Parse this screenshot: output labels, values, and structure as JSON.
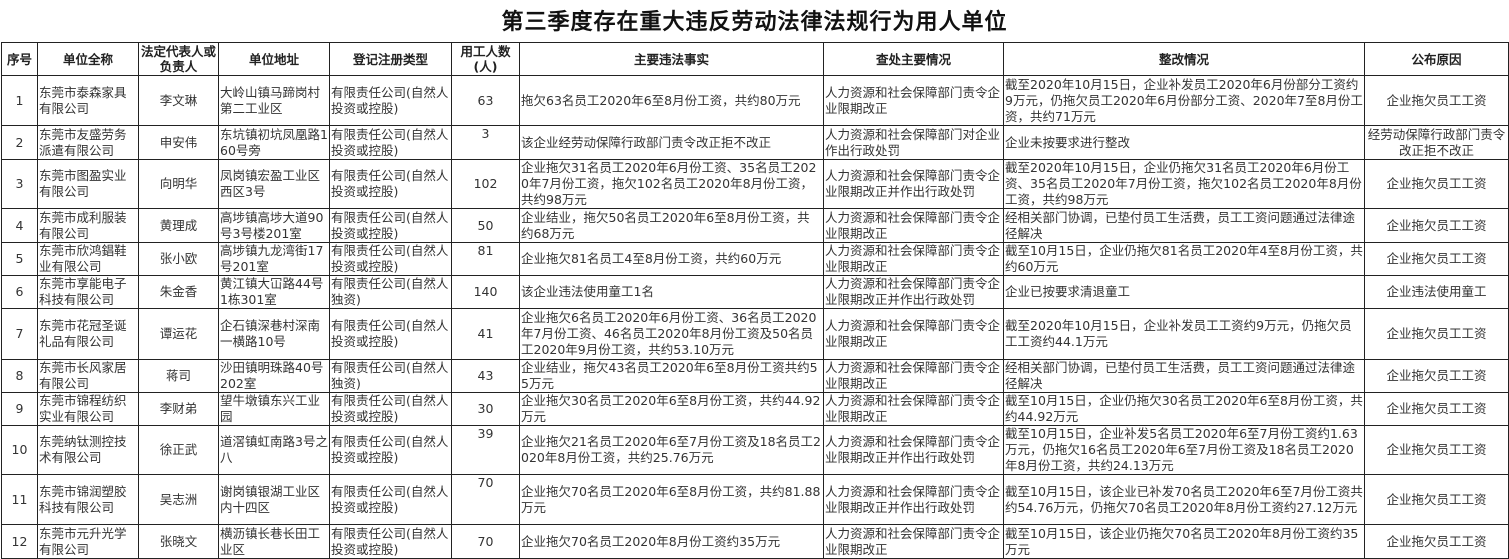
{
  "title": "第三季度存在重大违反劳动法律法规行为用人单位",
  "columns": [
    "序号",
    "单位全称",
    "法定代表人或负责人",
    "单位地址",
    "登记注册类型",
    "用工人数(人)",
    "主要违法事实",
    "查处主要情况",
    "整改情况",
    "公布原因"
  ],
  "rows": [
    [
      "1",
      "东莞市泰森家具有限公司",
      "李文琳",
      "大岭山镇马蹄岗村第二工业区",
      "有限责任公司(自然人投资或控股)",
      "63",
      "拖欠63名员工2020年6至8月份工资，共约80万元",
      "人力资源和社会保障部门责令企业限期改正",
      "截至2020年10月15日，企业补发员工2020年6月份部分工资约9万元，仍拖欠员工2020年6月份部分工资、2020年7至8月份工资，共约71万元",
      "企业拖欠员工工资"
    ],
    [
      "2",
      "东莞市友盛劳务派遣有限公司",
      "申安伟",
      "东坑镇初坑凤凰路160号旁",
      "有限责任公司(自然人投资或控股)",
      "3",
      "该企业经劳动保障行政部门责令改正拒不改正",
      "人力资源和社会保障部门对企业作出行政处罚",
      "企业未按要求进行整改",
      "经劳动保障行政部门责令改正拒不改正"
    ],
    [
      "3",
      "东莞市图盈实业有限公司",
      "向明华",
      "凤岗镇宏盈工业区西区3号",
      "有限责任公司(自然人投资或控股)",
      "102",
      "企业拖欠31名员工2020年6月份工资、35名员工2020年7月份工资，拖欠102名员工2020年8月份工资，共约98万元",
      "人力资源和社会保障部门责令企业限期改正并作出行政处罚",
      "截至2020年10月15日，企业仍拖欠31名员工2020年6月份工资、35名员工2020年7月份工资，拖欠102名员工2020年8月份工资，共约98万元",
      "企业拖欠员工工资"
    ],
    [
      "4",
      "东莞市成利服装有限公司",
      "黄理成",
      "高埗镇高埗大道90号3号楼201室",
      "有限责任公司(自然人投资或控股)",
      "50",
      "企业结业，拖欠50名员工2020年6至8月份工资，共约68万元",
      "人力资源和社会保障部门责令企业限期改正",
      "经相关部门协调，已垫付员工生活费，员工工资问题通过法律途径解决",
      "企业拖欠员工工资"
    ],
    [
      "5",
      "东莞市欣鸿錩鞋业有限公司",
      "张小欧",
      "高埗镇九龙湾街17号201室",
      "有限责任公司(自然人投资或控股)",
      "81",
      "企业拖欠81名员工4至8月份工资，共约60万元",
      "人力资源和社会保障部门责令企业限期改正",
      "截至10月15日，企业仍拖欠81名员工2020年4至8月份工资，共约60万元",
      "企业拖欠员工工资"
    ],
    [
      "6",
      "东莞市享能电子科技有限公司",
      "朱金香",
      "黄江镇大冚路44号1栋301室",
      "有限责任公司(自然人独资)",
      "140",
      "该企业违法使用童工1名",
      "人力资源和社会保障部门责令企业限期改正并作出行政处罚",
      "企业已按要求清退童工",
      "企业违法使用童工"
    ],
    [
      "7",
      "东莞市花冠圣诞礼品有限公司",
      "谭运花",
      "企石镇深巷村深南一横路10号",
      "有限责任公司(自然人投资或控股)",
      "41",
      "企业拖欠6名员工2020年6月份工资、36名员工2020年7月份工资、46名员工2020年8月份工资及50名员工2020年9月份工资，共约53.10万元",
      "人力资源和社会保障部门责令企业限期改正",
      "截至2020年10月15日，企业补发员工工资约9万元，仍拖欠员工工资约44.1万元",
      "企业拖欠员工工资"
    ],
    [
      "8",
      "东莞市长风家居有限公司",
      "蒋司",
      "沙田镇明珠路40号202室",
      "有限责任公司(自然人独资)",
      "43",
      "企业结业，拖欠43名员工2020年6至8月份工资共约55万元",
      "人力资源和社会保障部门责令企业限期改正",
      "经相关部门协调，已垫付员工生活费，员工工资问题通过法律途径解决",
      "企业拖欠员工工资"
    ],
    [
      "9",
      "东莞市锦程纺织实业有限公司",
      "李财弟",
      "望牛墩镇东兴工业园",
      "有限责任公司(自然人投资或控股)",
      "30",
      "企业拖欠30名员工2020年6至8月份工资，共约44.92万元",
      "人力资源和社会保障部门责令企业限期改正",
      "截至10月15日，企业仍拖欠30名员工2020年6至8月份工资，共约44.92万元",
      "企业拖欠员工工资"
    ],
    [
      "10",
      "东莞纳钛测控技术有限公司",
      "徐正武",
      "道滘镇虹南路3号之八",
      "有限责任公司(自然人投资或控股)",
      "39",
      "企业拖欠21名员工2020年6至7月份工资及18名员工2020年8月份工资，共约25.76万元",
      "人力资源和社会保障部门责令企业限期改正并作出行政处罚",
      "截至10月15日，企业补发5名员工2020年6至7月份工资约1.63万元，仍拖欠16名员工2020年6至7月份工资及18名员工2020年8月份工资，共约24.13万元",
      "企业拖欠员工工资"
    ],
    [
      "11",
      "东莞市锦润塑胶科技有限公司",
      "吴志洲",
      "谢岗镇银湖工业区内十四区",
      "有限责任公司(自然人投资或控股)",
      "70",
      "企业拖欠70名员工2020年6至8月份工资，共约81.88万元",
      "人力资源和社会保障部门责令企业限期改正并作出行政处罚",
      "截至10月15日，该企业已补发70名员工2020年6至7月份工资共约54.76万元，仍拖欠70名员工2020年8月份工资约27.12万元",
      "企业拖欠员工工资"
    ],
    [
      "12",
      "东莞市元升光学有限公司",
      "张晓文",
      "横沥镇长巷长田工业区",
      "有限责任公司(自然人投资或控股)",
      "70",
      "企业拖欠70名员工2020年8月份工资约35万元",
      "人力资源和社会保障部门责令企业限期改正",
      "截至10月15日，该企业仍拖欠70名员工2020年8月份工资约35万元",
      "企业拖欠员工工资"
    ]
  ]
}
